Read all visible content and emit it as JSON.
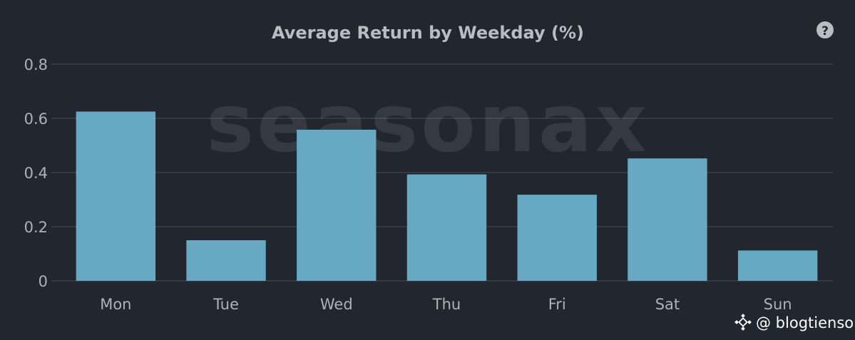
{
  "chart_data": {
    "type": "bar",
    "title": "Average Return by Weekday (%)",
    "categories": [
      "Mon",
      "Tue",
      "Wed",
      "Thu",
      "Fri",
      "Sat",
      "Sun"
    ],
    "values": [
      0.625,
      0.15,
      0.558,
      0.393,
      0.318,
      0.452,
      0.112
    ],
    "ylim": [
      0,
      0.8
    ],
    "yticks": [
      0,
      0.2,
      0.4,
      0.6,
      0.8
    ],
    "ytick_labels": [
      "0",
      "0.2",
      "0.4",
      "0.6",
      "0.8"
    ],
    "grid": true,
    "bar_color": "#67a8c3"
  },
  "watermark": {
    "text": "seasonax"
  },
  "help_icon": "question-circle-icon",
  "credit": {
    "text": "@ blogtienso",
    "icon": "binance-diamond-icon"
  }
}
